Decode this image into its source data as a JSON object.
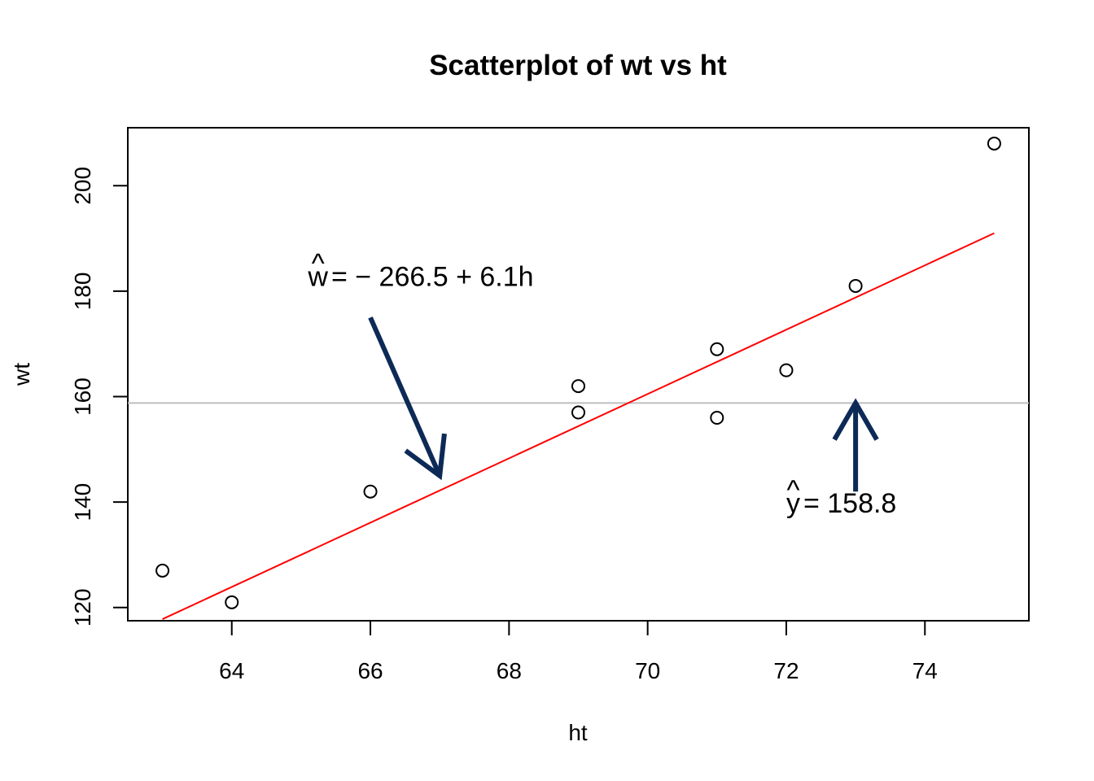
{
  "chart_data": {
    "type": "scatter",
    "title": "Scatterplot of wt vs ht",
    "xlabel": "ht",
    "ylabel": "wt",
    "xlim": [
      62.5,
      75.5
    ],
    "ylim": [
      117.5,
      211
    ],
    "x_ticks": [
      64,
      66,
      68,
      70,
      72,
      74
    ],
    "y_ticks": [
      120,
      140,
      160,
      180,
      200
    ],
    "grid": false,
    "points": [
      {
        "x": 63,
        "y": 127
      },
      {
        "x": 64,
        "y": 121
      },
      {
        "x": 66,
        "y": 142
      },
      {
        "x": 69,
        "y": 162
      },
      {
        "x": 69,
        "y": 157
      },
      {
        "x": 71,
        "y": 169
      },
      {
        "x": 71,
        "y": 156
      },
      {
        "x": 72,
        "y": 165
      },
      {
        "x": 73,
        "y": 181
      },
      {
        "x": 75,
        "y": 208
      }
    ],
    "regression_line": {
      "intercept": -266.5,
      "slope": 6.1,
      "x_start": 63,
      "x_end": 75,
      "color": "#ff0000"
    },
    "mean_line": {
      "y": 158.8,
      "color": "#bebebe"
    },
    "annotations": [
      {
        "id": "regression-equation",
        "hat_symbol": "w",
        "text": "= − 266.5 + 6.1h",
        "anchor": {
          "x": 65.1,
          "y": 181
        },
        "arrow_from": {
          "x": 66.0,
          "y": 175
        },
        "arrow_to": {
          "x": 67.0,
          "y": 145
        },
        "arrow_color": "#0d2a57"
      },
      {
        "id": "mean-annotation",
        "hat_symbol": "y",
        "text": "= 158.8",
        "anchor": {
          "x": 72.0,
          "y": 138
        },
        "arrow_from": {
          "x": 73.0,
          "y": 142
        },
        "arrow_to": {
          "x": 73.0,
          "y": 158.8
        },
        "arrow_color": "#0d2a57"
      }
    ]
  }
}
